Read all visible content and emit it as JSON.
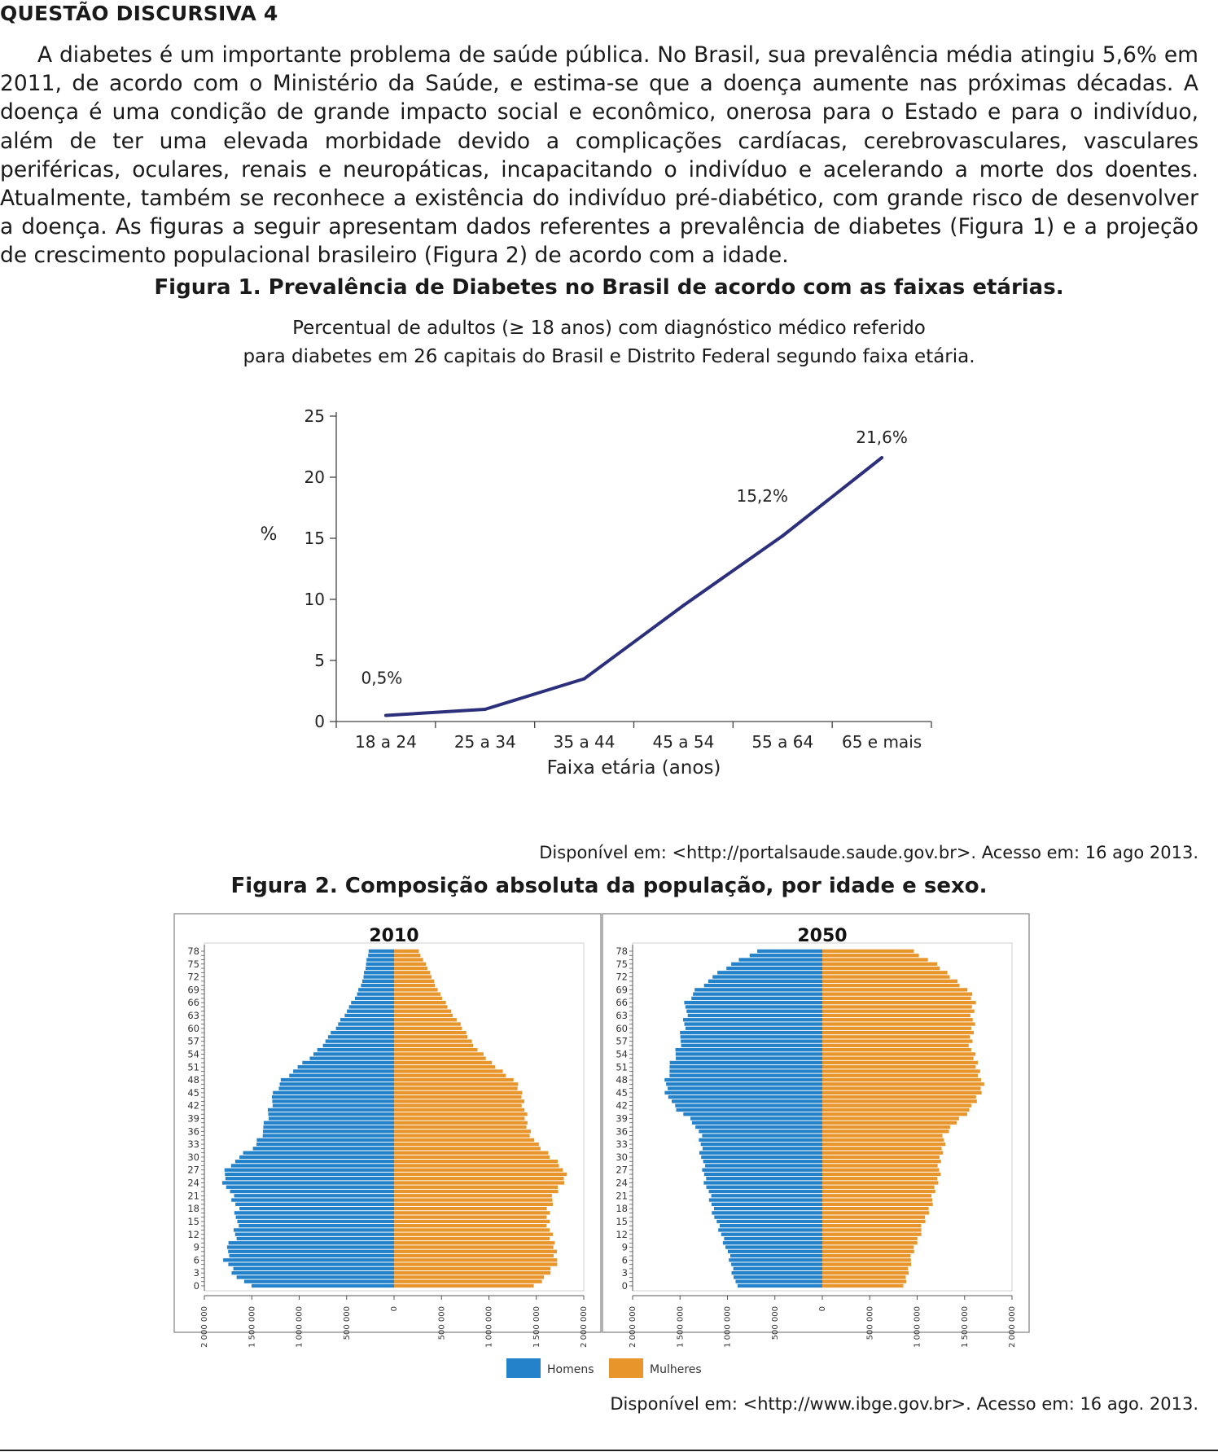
{
  "heading": "QUESTÃO DISCURSIVA 4",
  "paragraph": "A diabetes é um importante problema de saúde pública. No Brasil, sua prevalência média atingiu 5,6% em 2011, de acordo com o Ministério da Saúde, e estima-se que a doença aumente nas próximas décadas. A doença é uma condição de grande impacto social e econômico, onerosa para o Estado e para o indivíduo, além de ter uma elevada morbidade devido a complicações cardíacas, cerebrovasculares, vasculares periféricas, oculares, renais e neuropáticas, incapacitando o indivíduo e acelerando a morte dos doentes. Atualmente, também se reconhece a existência do indivíduo pré-diabético, com grande risco de desenvolver a doença. As figuras a seguir apresentam dados referentes a prevalência de diabetes (Figura 1) e a projeção de crescimento populacional brasileiro (Figura 2) de acordo com a idade.",
  "figure1": {
    "title": "Figura 1. Prevalência de Diabetes no Brasil de acordo com as faixas etárias.",
    "subtitle_line1": "Percentual de adultos (≥ 18 anos) com diagnóstico médico referido",
    "subtitle_line2": "para diabetes em 26 capitais do Brasil e Distrito Federal segundo faixa etária.",
    "source": "Disponível em: <http://portalsaude.saude.gov.br>. Acesso em: 16 ago 2013."
  },
  "figure2": {
    "title": "Figura 2. Composição absoluta da população, por idade e sexo.",
    "source": "Disponível em: <http://www.ibge.gov.br>. Acesso em: 16 ago. 2013."
  },
  "chart_data": [
    {
      "type": "line",
      "title": "Percentual de adultos (≥ 18 anos) com diagnóstico médico referido para diabetes em 26 capitais do Brasil e Distrito Federal segundo faixa etária.",
      "xlabel": "Faixa etária (anos)",
      "ylabel": "%",
      "ylim": [
        0,
        25
      ],
      "yticks": [
        "0",
        "5",
        "10",
        "15",
        "20",
        "25"
      ],
      "categories": [
        "18 a 24",
        "25 a 34",
        "35 a 44",
        "45 a 54",
        "55 a 64",
        "65 e mais"
      ],
      "values": [
        0.5,
        1.0,
        3.5,
        9.5,
        15.2,
        21.6
      ],
      "data_labels": [
        {
          "index": 0,
          "text": "0,5%"
        },
        {
          "index": 4,
          "text": "15,2%"
        },
        {
          "index": 5,
          "text": "21,6%"
        }
      ],
      "color": "#2b2f7c"
    },
    {
      "type": "bar",
      "subtype": "population-pyramid",
      "charts": [
        {
          "title": "2010",
          "ages": [
            0,
            78
          ],
          "homens_knots": [
            [
              0,
              1530000
            ],
            [
              2,
              1650000
            ],
            [
              6,
              1780000
            ],
            [
              9,
              1750000
            ],
            [
              11,
              1680000
            ],
            [
              18,
              1650000
            ],
            [
              22,
              1740000
            ],
            [
              25,
              1800000
            ],
            [
              28,
              1750000
            ],
            [
              30,
              1620000
            ],
            [
              33,
              1450000
            ],
            [
              38,
              1350000
            ],
            [
              44,
              1280000
            ],
            [
              48,
              1180000
            ],
            [
              50,
              1070000
            ],
            [
              52,
              950000
            ],
            [
              55,
              800000
            ],
            [
              60,
              620000
            ],
            [
              64,
              500000
            ],
            [
              68,
              390000
            ],
            [
              72,
              320000
            ],
            [
              78,
              270000
            ]
          ],
          "mulheres_knots": [
            [
              0,
              1500000
            ],
            [
              2,
              1600000
            ],
            [
              6,
              1720000
            ],
            [
              9,
              1700000
            ],
            [
              11,
              1650000
            ],
            [
              18,
              1620000
            ],
            [
              22,
              1720000
            ],
            [
              25,
              1800000
            ],
            [
              28,
              1770000
            ],
            [
              30,
              1660000
            ],
            [
              33,
              1500000
            ],
            [
              38,
              1390000
            ],
            [
              44,
              1360000
            ],
            [
              48,
              1260000
            ],
            [
              50,
              1140000
            ],
            [
              52,
              1020000
            ],
            [
              55,
              880000
            ],
            [
              60,
              720000
            ],
            [
              64,
              600000
            ],
            [
              68,
              480000
            ],
            [
              72,
              400000
            ],
            [
              78,
              260000
            ]
          ]
        },
        {
          "title": "2050",
          "ages": [
            0,
            78
          ],
          "homens_knots": [
            [
              0,
              910000
            ],
            [
              5,
              960000
            ],
            [
              10,
              1030000
            ],
            [
              15,
              1120000
            ],
            [
              20,
              1180000
            ],
            [
              25,
              1240000
            ],
            [
              30,
              1270000
            ],
            [
              35,
              1290000
            ],
            [
              38,
              1350000
            ],
            [
              42,
              1580000
            ],
            [
              46,
              1650000
            ],
            [
              49,
              1640000
            ],
            [
              52,
              1580000
            ],
            [
              55,
              1530000
            ],
            [
              60,
              1460000
            ],
            [
              66,
              1430000
            ],
            [
              69,
              1330000
            ],
            [
              72,
              1150000
            ],
            [
              75,
              960000
            ],
            [
              78,
              690000
            ]
          ],
          "mulheres_knots": [
            [
              0,
              870000
            ],
            [
              5,
              920000
            ],
            [
              10,
              990000
            ],
            [
              15,
              1080000
            ],
            [
              20,
              1160000
            ],
            [
              25,
              1220000
            ],
            [
              30,
              1250000
            ],
            [
              35,
              1290000
            ],
            [
              38,
              1400000
            ],
            [
              42,
              1600000
            ],
            [
              46,
              1680000
            ],
            [
              49,
              1670000
            ],
            [
              52,
              1620000
            ],
            [
              55,
              1570000
            ],
            [
              60,
              1580000
            ],
            [
              66,
              1600000
            ],
            [
              69,
              1530000
            ],
            [
              72,
              1360000
            ],
            [
              75,
              1190000
            ],
            [
              78,
              960000
            ]
          ]
        }
      ],
      "age_ticks": [
        "0",
        "3",
        "6",
        "9",
        "12",
        "15",
        "18",
        "21",
        "24",
        "27",
        "30",
        "33",
        "36",
        "39",
        "42",
        "45",
        "48",
        "51",
        "54",
        "57",
        "60",
        "63",
        "66",
        "69",
        "72",
        "75",
        "78"
      ],
      "x_ticks": [
        "2 000 000",
        "1 500 000",
        "1 000 000",
        "500 000",
        "0",
        "500 000",
        "1 000 000",
        "1 500 000",
        "2 000 000"
      ],
      "xlim": [
        -2000000,
        2000000
      ],
      "legend": [
        {
          "name": "Homens",
          "color": "#2382c9"
        },
        {
          "name": "Mulheres",
          "color": "#e8962b"
        }
      ]
    }
  ]
}
